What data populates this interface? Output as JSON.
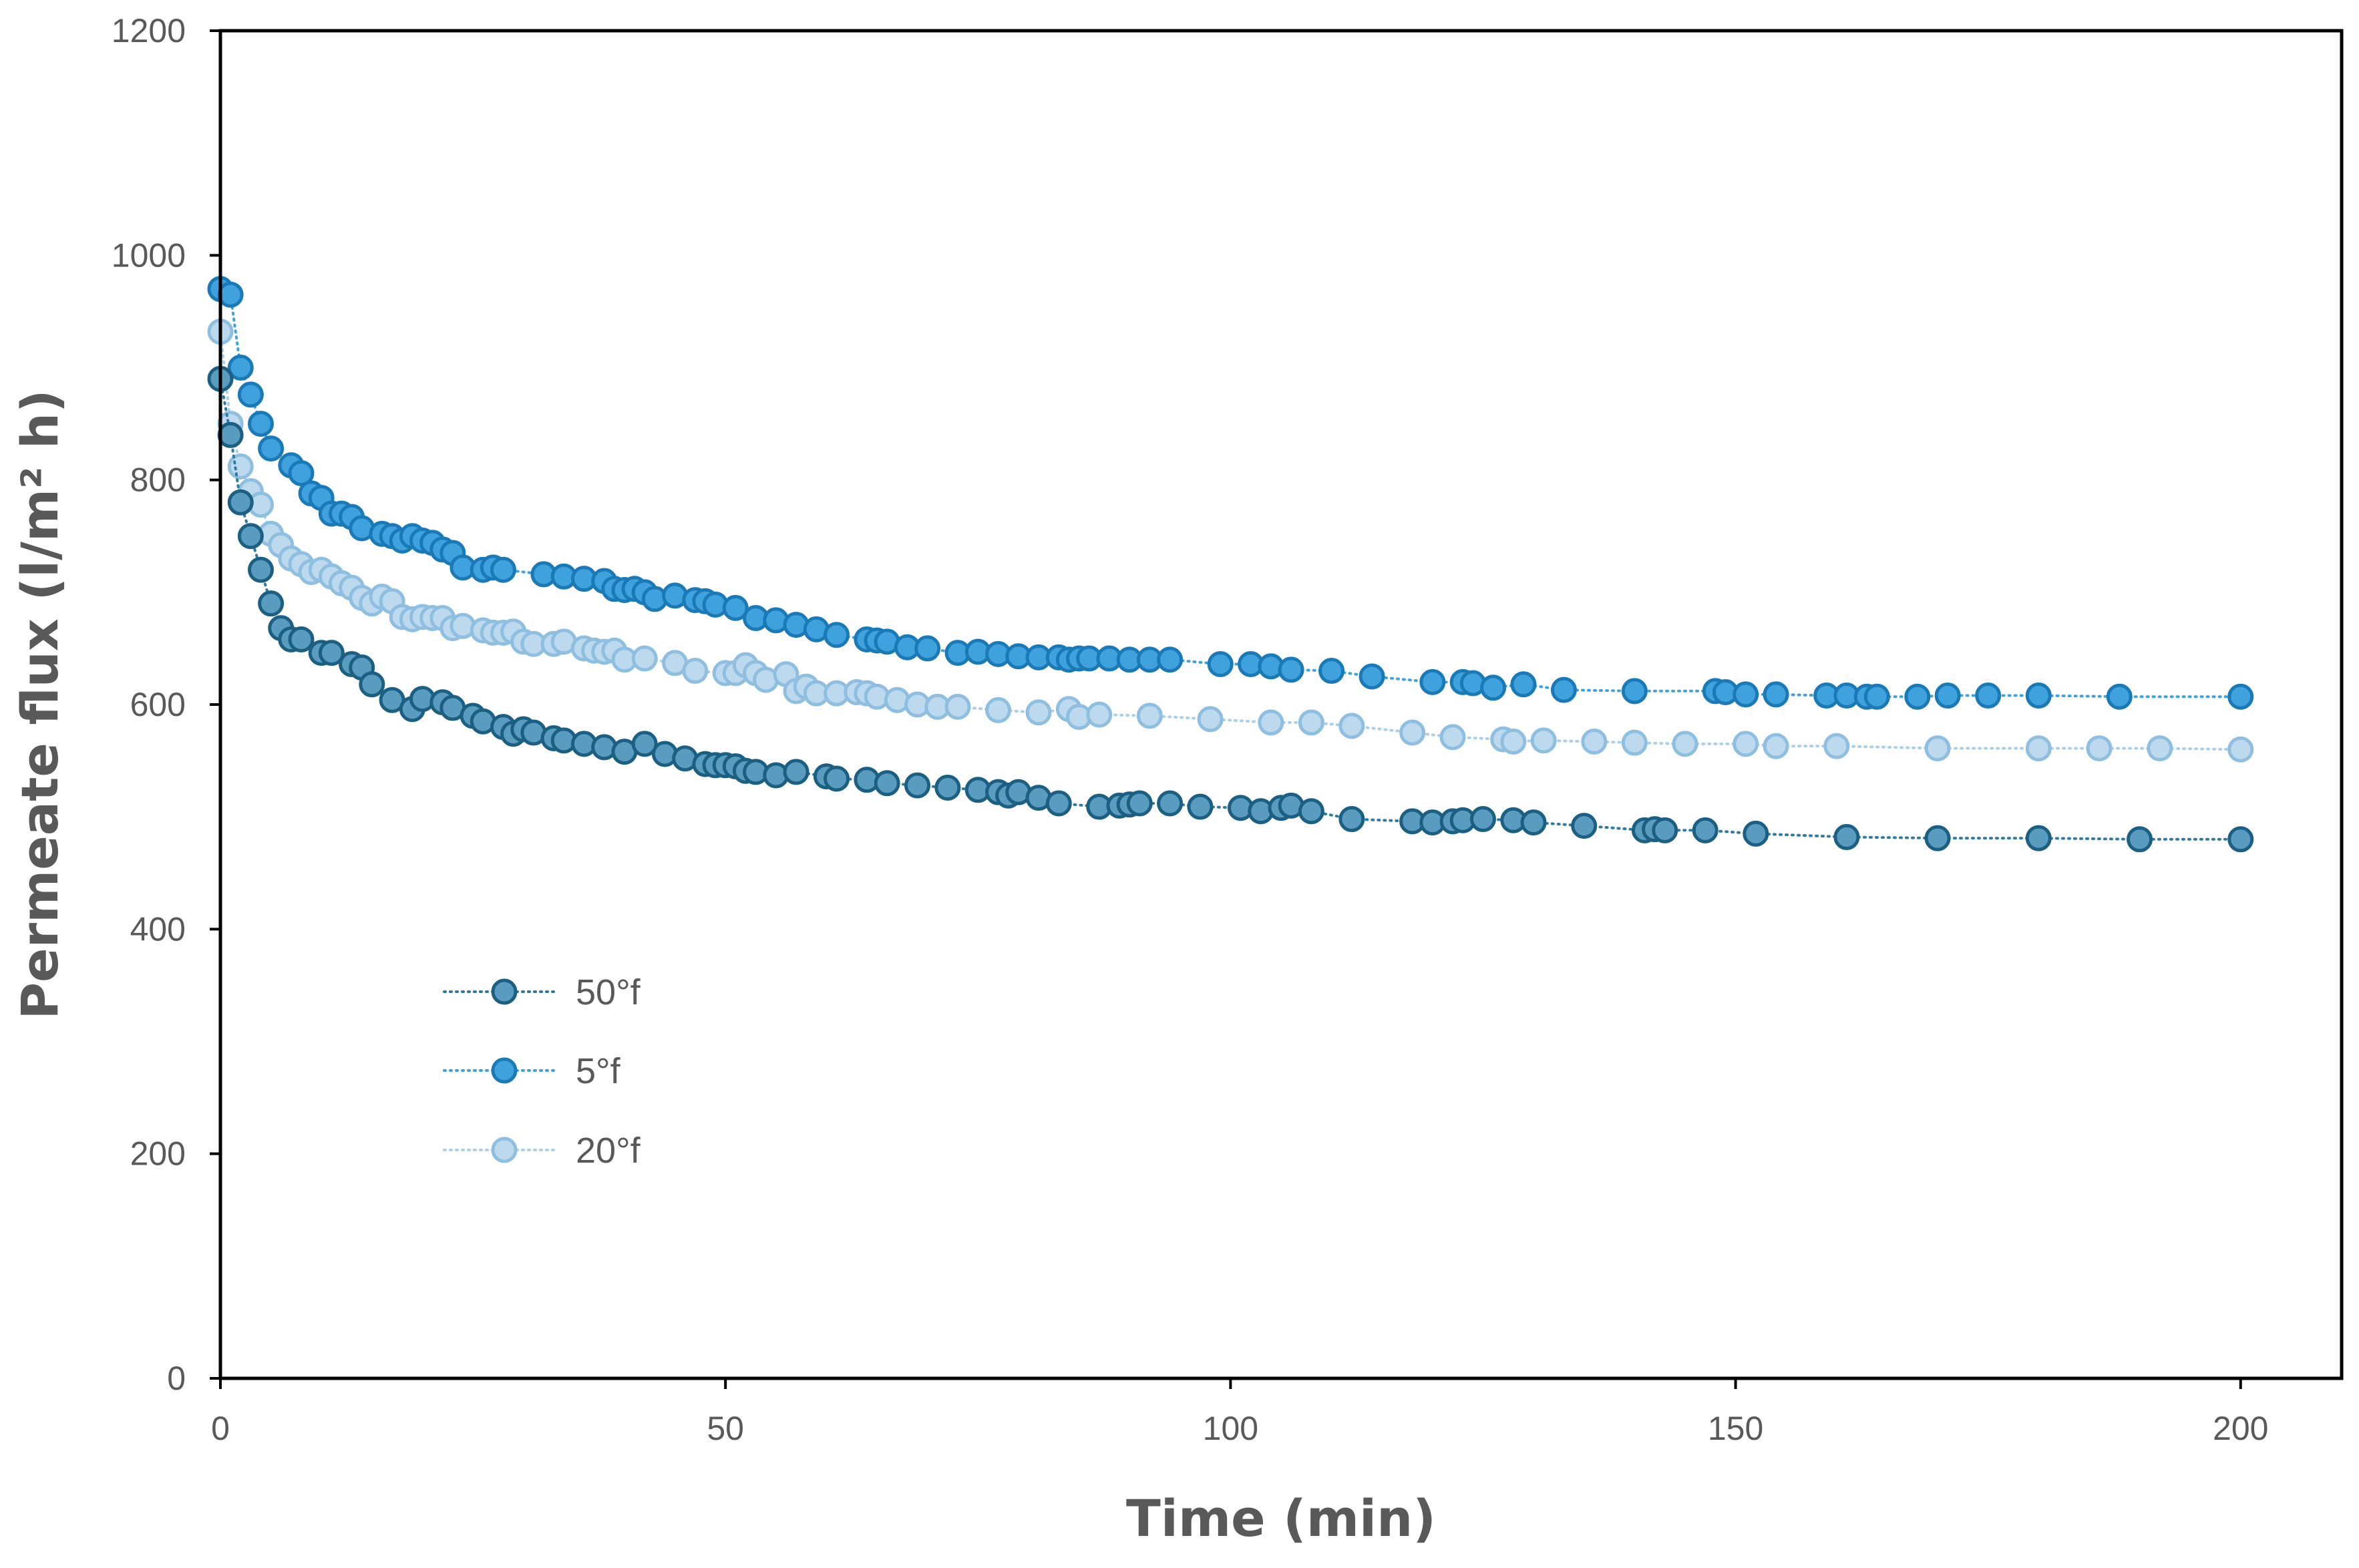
{
  "chart_data": {
    "type": "scatter",
    "title": "",
    "xlabel": "Time (min)",
    "ylabel": "Permeate flux (l/m² h)",
    "xlim": [
      0,
      210
    ],
    "ylim": [
      0,
      1200
    ],
    "xticks": [
      0,
      50,
      100,
      150,
      200
    ],
    "yticks": [
      0,
      200,
      400,
      600,
      800,
      1000,
      1200
    ],
    "xtick_labels": [
      "0",
      "50",
      "100",
      "150",
      "200"
    ],
    "ytick_labels": [
      "0",
      "200",
      "400",
      "600",
      "800",
      "1000",
      "1200"
    ],
    "legend_position": "lower-left",
    "series": [
      {
        "name": "50°f",
        "marker_color": "#5a9cc0",
        "edge_color": "#1b5f82",
        "line_color": "#2e7aa3",
        "x": [
          0,
          1,
          2,
          3,
          4,
          5,
          6,
          7,
          8,
          10,
          11,
          13,
          14,
          15,
          17,
          19,
          20,
          22,
          23,
          25,
          26,
          28,
          29,
          30,
          31,
          33,
          34,
          36,
          38,
          40,
          42,
          44,
          46,
          48,
          49,
          50,
          51,
          52,
          53,
          55,
          57,
          60,
          61,
          64,
          66,
          69,
          72,
          75,
          77,
          78,
          79,
          81,
          83,
          87,
          89,
          90,
          91,
          94,
          97,
          101,
          103,
          105,
          106,
          108,
          112,
          118,
          120,
          122,
          123,
          125,
          128,
          130,
          135,
          141,
          142,
          143,
          147,
          152,
          161,
          170,
          180,
          190,
          200
        ],
        "y": [
          890,
          840,
          780,
          750,
          720,
          690,
          668,
          658,
          658,
          646,
          646,
          636,
          633,
          618,
          604,
          596,
          605,
          602,
          597,
          590,
          585,
          580,
          574,
          578,
          575,
          570,
          568,
          565,
          562,
          558,
          565,
          556,
          552,
          547,
          546,
          546,
          545,
          541,
          540,
          537,
          540,
          536,
          534,
          533,
          530,
          528,
          526,
          524,
          522,
          519,
          522,
          517,
          512,
          509,
          510,
          511,
          512,
          512,
          509,
          508,
          505,
          508,
          510,
          505,
          498,
          496,
          495,
          496,
          497,
          498,
          497,
          495,
          492,
          488,
          489,
          488,
          488,
          485,
          482,
          481,
          481,
          480,
          480
        ]
      },
      {
        "name": "5°f",
        "marker_color": "#3fa2dc",
        "edge_color": "#1a7ab8",
        "line_color": "#3fa2dc",
        "x": [
          0,
          1,
          2,
          3,
          4,
          5,
          7,
          8,
          9,
          10,
          11,
          12,
          13,
          14,
          16,
          17,
          18,
          19,
          20,
          21,
          22,
          23,
          24,
          26,
          27,
          28,
          32,
          34,
          36,
          38,
          39,
          40,
          41,
          42,
          43,
          45,
          47,
          48,
          49,
          51,
          53,
          55,
          57,
          59,
          61,
          64,
          65,
          66,
          68,
          70,
          73,
          75,
          77,
          79,
          81,
          83,
          84,
          85,
          86,
          88,
          90,
          92,
          94,
          99,
          102,
          104,
          106,
          110,
          114,
          120,
          123,
          124,
          126,
          129,
          133,
          140,
          148,
          149,
          151,
          154,
          159,
          161,
          163,
          164,
          168,
          171,
          175,
          180,
          188,
          200
        ],
        "y": [
          970,
          965,
          900,
          876,
          850,
          828,
          813,
          806,
          788,
          784,
          770,
          770,
          767,
          757,
          752,
          750,
          746,
          750,
          746,
          744,
          738,
          735,
          722,
          720,
          722,
          720,
          716,
          714,
          712,
          710,
          703,
          702,
          703,
          700,
          694,
          697,
          693,
          692,
          689,
          686,
          677,
          675,
          671,
          667,
          662,
          658,
          657,
          656,
          651,
          650,
          646,
          647,
          645,
          643,
          642,
          642,
          640,
          641,
          641,
          641,
          640,
          640,
          640,
          636,
          636,
          634,
          631,
          630,
          625,
          620,
          620,
          619,
          615,
          618,
          613,
          612,
          612,
          611,
          609,
          609,
          608,
          608,
          607,
          607,
          607,
          608,
          608,
          608,
          607,
          607
        ]
      },
      {
        "name": "20°f",
        "marker_color": "#bcd9ee",
        "edge_color": "#8fbfe0",
        "line_color": "#a9cfea",
        "x": [
          0,
          1,
          2,
          3,
          4,
          5,
          6,
          7,
          8,
          9,
          10,
          11,
          12,
          13,
          14,
          15,
          16,
          17,
          18,
          19,
          20,
          21,
          22,
          23,
          24,
          26,
          27,
          28,
          29,
          30,
          31,
          33,
          34,
          36,
          37,
          38,
          39,
          40,
          42,
          45,
          47,
          50,
          51,
          52,
          53,
          54,
          56,
          57,
          58,
          59,
          61,
          63,
          64,
          65,
          67,
          69,
          71,
          73,
          77,
          81,
          84,
          85,
          87,
          92,
          98,
          104,
          108,
          112,
          118,
          122,
          127,
          128,
          131,
          136,
          140,
          145,
          151,
          154,
          160,
          170,
          180,
          186,
          192,
          200
        ],
        "y": [
          932,
          850,
          812,
          790,
          778,
          752,
          742,
          730,
          725,
          718,
          720,
          714,
          708,
          704,
          695,
          690,
          696,
          692,
          678,
          676,
          678,
          677,
          677,
          668,
          670,
          666,
          664,
          664,
          665,
          656,
          654,
          654,
          656,
          650,
          648,
          647,
          648,
          640,
          641,
          637,
          630,
          628,
          628,
          635,
          628,
          622,
          627,
          612,
          616,
          610,
          610,
          611,
          610,
          607,
          604,
          600,
          598,
          598,
          595,
          593,
          596,
          589,
          591,
          590,
          587,
          584,
          584,
          581,
          575,
          571,
          569,
          567,
          568,
          567,
          566,
          565,
          565,
          563,
          563,
          561,
          561,
          561,
          561,
          560
        ]
      }
    ]
  }
}
